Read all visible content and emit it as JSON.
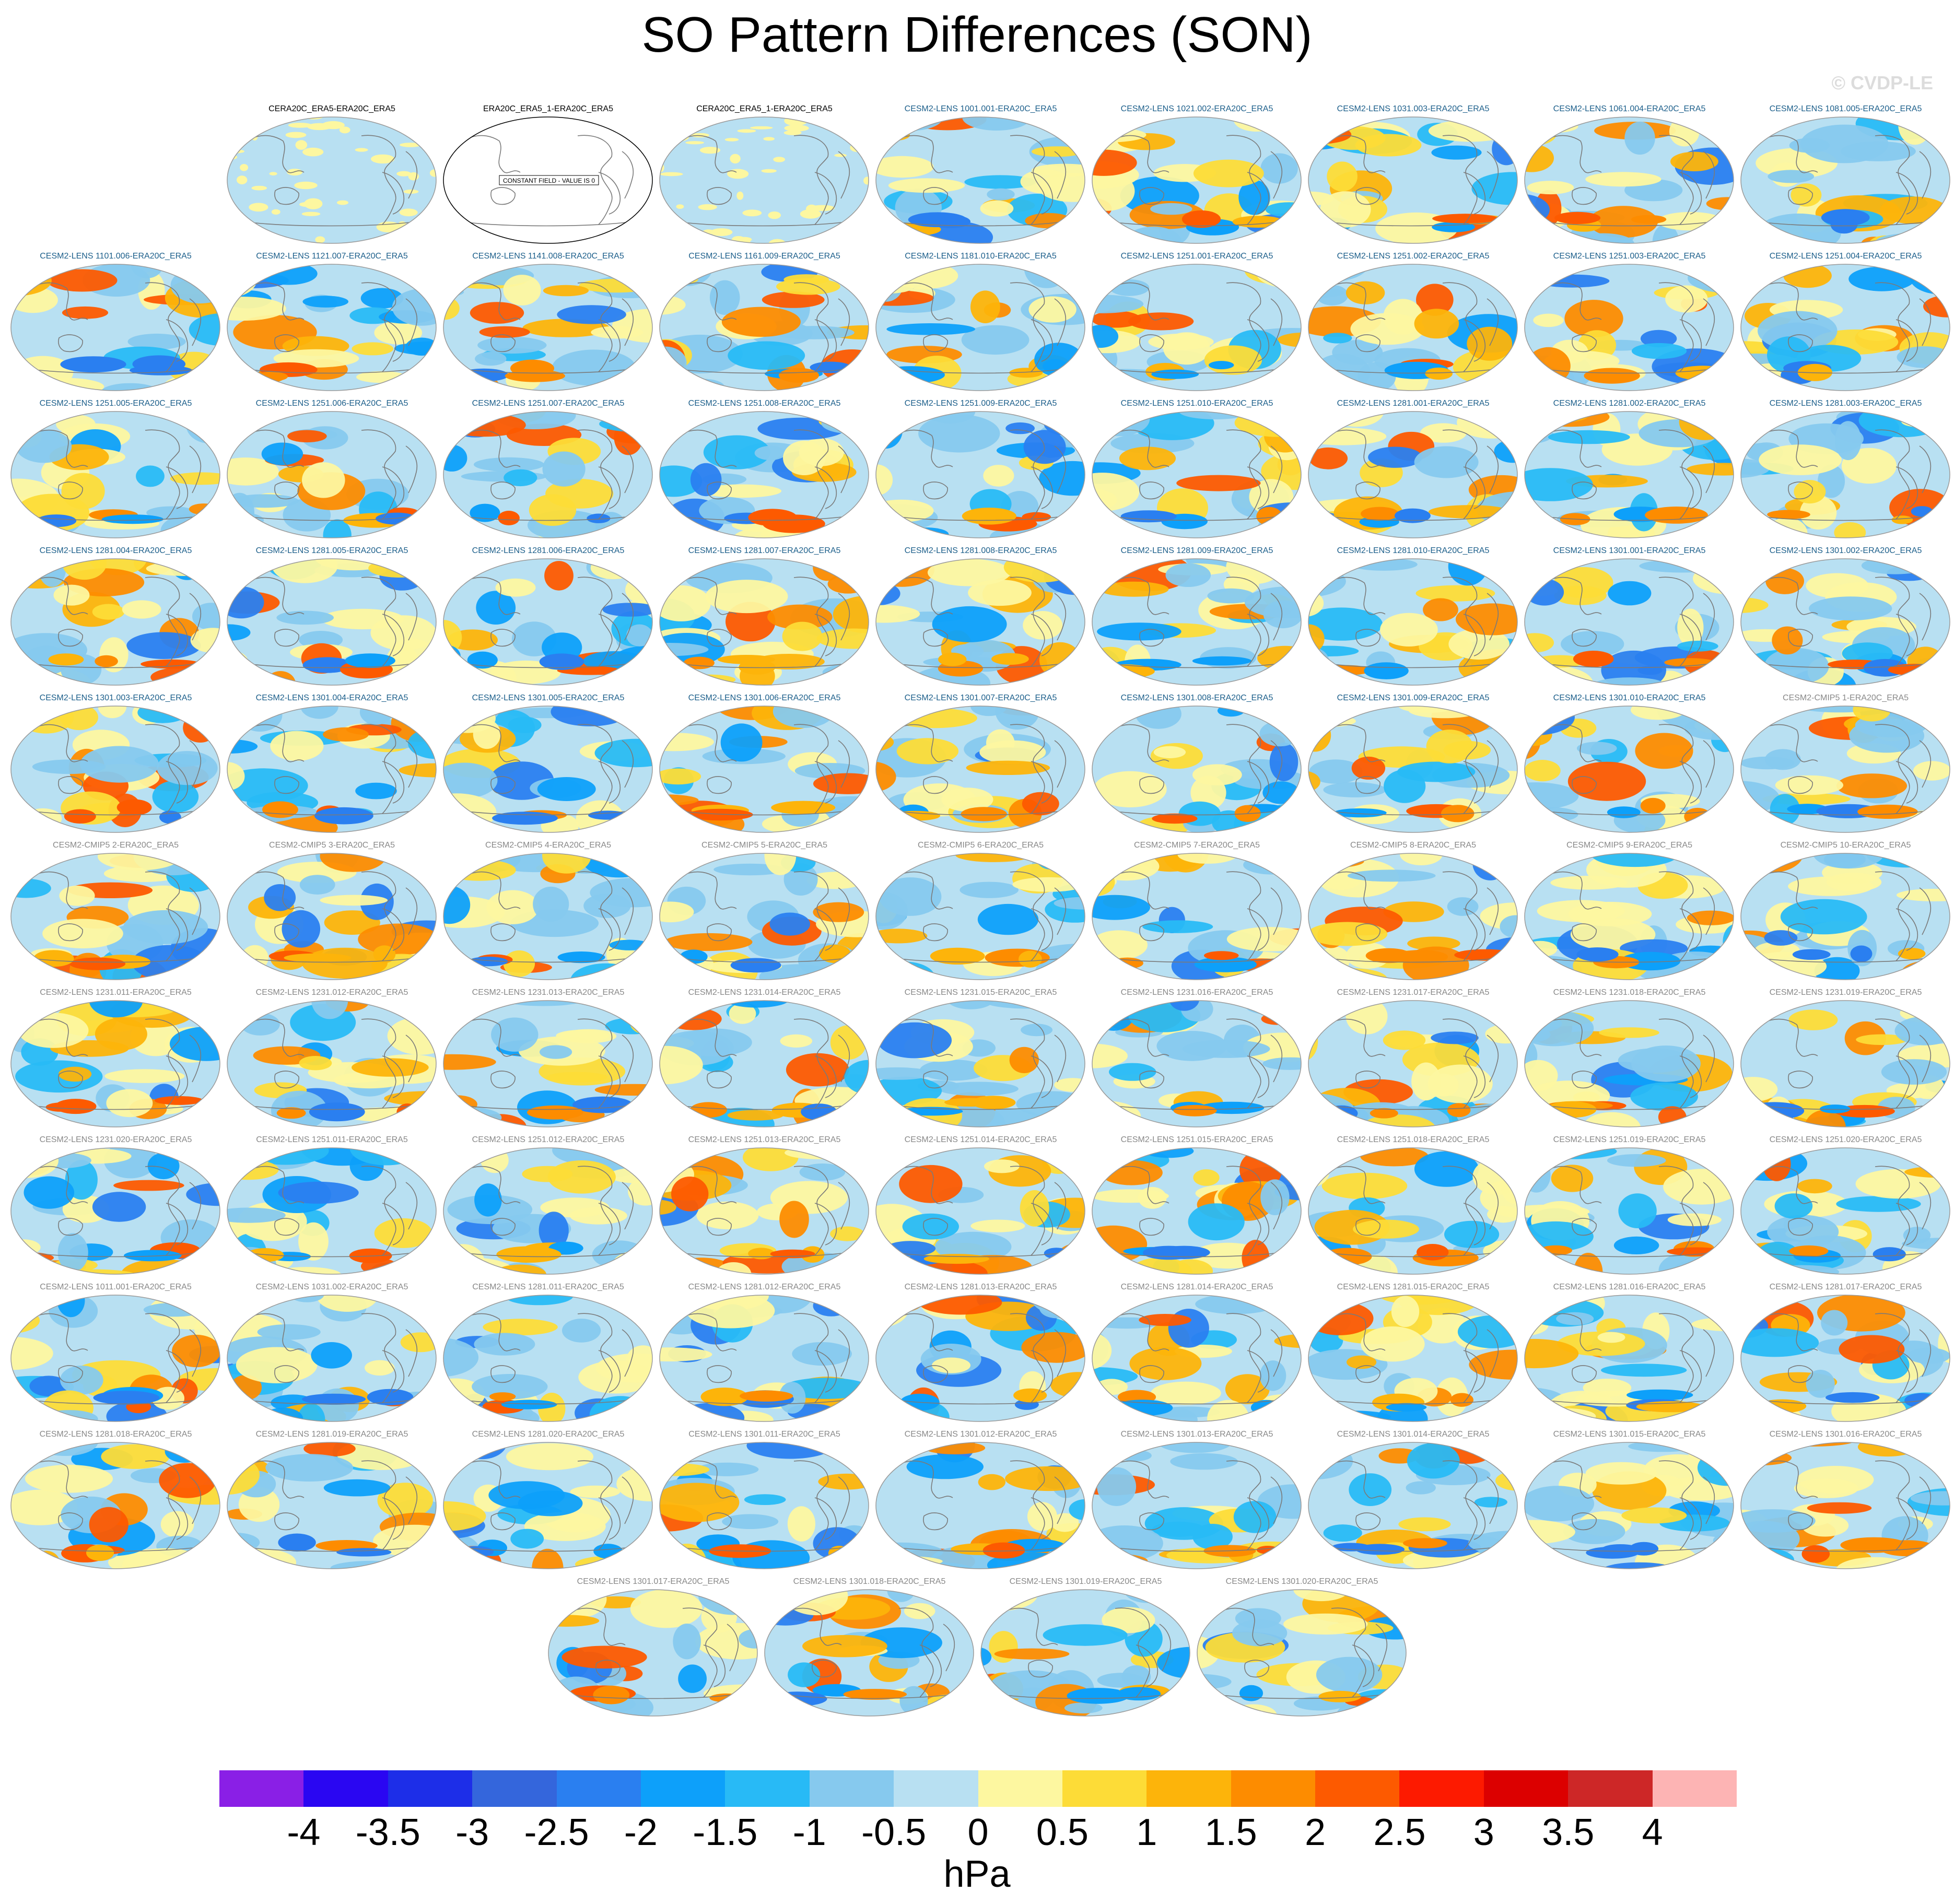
{
  "title": "SO Pattern Differences (SON)",
  "watermark": "© CVDP-LE",
  "units": "hPa",
  "colorbar": {
    "labels": [
      "-4",
      "-3.5",
      "-3",
      "-2.5",
      "-2",
      "-1.5",
      "-1",
      "-0.5",
      "0",
      "0.5",
      "1",
      "1.5",
      "2",
      "2.5",
      "3",
      "3.5",
      "4"
    ],
    "colors": [
      "#8a1fe6",
      "#2a06f2",
      "#1d2ee8",
      "#3466dc",
      "#2a7ff0",
      "#0da0fa",
      "#28baf6",
      "#86c9ee",
      "#b8e0f2",
      "#fdf7a0",
      "#fddc37",
      "#fdb40a",
      "#fd8c00",
      "#fd5a00",
      "#fd1a00",
      "#dc0000",
      "#cd2727",
      "#fdb4b4"
    ]
  },
  "constant_field_label": "CONSTANT FIELD - VALUE IS 0",
  "panels": [
    {
      "title": "CERA20C_ERA5-ERA20C_ERA5",
      "title_color": "#000000",
      "style": "light"
    },
    {
      "title": "ERA20C_ERA5_1-ERA20C_ERA5",
      "title_color": "#000000",
      "style": "constant"
    },
    {
      "title": "CERA20C_ERA5_1-ERA20C_ERA5",
      "title_color": "#000000",
      "style": "light"
    },
    {
      "title": "CESM2-LENS 1001.001-ERA20C_ERA5",
      "title_color": "#1b5e8a",
      "style": "field"
    },
    {
      "title": "CESM2-LENS 1021.002-ERA20C_ERA5",
      "title_color": "#1b5e8a",
      "style": "field"
    },
    {
      "title": "CESM2-LENS 1031.003-ERA20C_ERA5",
      "title_color": "#1b5e8a",
      "style": "field"
    },
    {
      "title": "CESM2-LENS 1061.004-ERA20C_ERA5",
      "title_color": "#1b5e8a",
      "style": "field"
    },
    {
      "title": "CESM2-LENS 1081.005-ERA20C_ERA5",
      "title_color": "#1b5e8a",
      "style": "field"
    },
    {
      "title": "CESM2-LENS 1101.006-ERA20C_ERA5",
      "title_color": "#1b5e8a",
      "style": "field"
    },
    {
      "title": "CESM2-LENS 1121.007-ERA20C_ERA5",
      "title_color": "#1b5e8a",
      "style": "field"
    },
    {
      "title": "CESM2-LENS 1141.008-ERA20C_ERA5",
      "title_color": "#1b5e8a",
      "style": "field"
    },
    {
      "title": "CESM2-LENS 1161.009-ERA20C_ERA5",
      "title_color": "#1b5e8a",
      "style": "field"
    },
    {
      "title": "CESM2-LENS 1181.010-ERA20C_ERA5",
      "title_color": "#1b5e8a",
      "style": "field"
    },
    {
      "title": "CESM2-LENS 1251.001-ERA20C_ERA5",
      "title_color": "#1b5e8a",
      "style": "field"
    },
    {
      "title": "CESM2-LENS 1251.002-ERA20C_ERA5",
      "title_color": "#1b5e8a",
      "style": "field"
    },
    {
      "title": "CESM2-LENS 1251.003-ERA20C_ERA5",
      "title_color": "#1b5e8a",
      "style": "field"
    },
    {
      "title": "CESM2-LENS 1251.004-ERA20C_ERA5",
      "title_color": "#1b5e8a",
      "style": "field"
    },
    {
      "title": "CESM2-LENS 1251.005-ERA20C_ERA5",
      "title_color": "#1b5e8a",
      "style": "field"
    },
    {
      "title": "CESM2-LENS 1251.006-ERA20C_ERA5",
      "title_color": "#1b5e8a",
      "style": "field"
    },
    {
      "title": "CESM2-LENS 1251.007-ERA20C_ERA5",
      "title_color": "#1b5e8a",
      "style": "field"
    },
    {
      "title": "CESM2-LENS 1251.008-ERA20C_ERA5",
      "title_color": "#1b5e8a",
      "style": "field"
    },
    {
      "title": "CESM2-LENS 1251.009-ERA20C_ERA5",
      "title_color": "#1b5e8a",
      "style": "field"
    },
    {
      "title": "CESM2-LENS 1251.010-ERA20C_ERA5",
      "title_color": "#1b5e8a",
      "style": "field"
    },
    {
      "title": "CESM2-LENS 1281.001-ERA20C_ERA5",
      "title_color": "#1b5e8a",
      "style": "field"
    },
    {
      "title": "CESM2-LENS 1281.002-ERA20C_ERA5",
      "title_color": "#1b5e8a",
      "style": "field"
    },
    {
      "title": "CESM2-LENS 1281.003-ERA20C_ERA5",
      "title_color": "#1b5e8a",
      "style": "field"
    },
    {
      "title": "CESM2-LENS 1281.004-ERA20C_ERA5",
      "title_color": "#1b5e8a",
      "style": "field"
    },
    {
      "title": "CESM2-LENS 1281.005-ERA20C_ERA5",
      "title_color": "#1b5e8a",
      "style": "field"
    },
    {
      "title": "CESM2-LENS 1281.006-ERA20C_ERA5",
      "title_color": "#1b5e8a",
      "style": "field"
    },
    {
      "title": "CESM2-LENS 1281.007-ERA20C_ERA5",
      "title_color": "#1b5e8a",
      "style": "field"
    },
    {
      "title": "CESM2-LENS 1281.008-ERA20C_ERA5",
      "title_color": "#1b5e8a",
      "style": "field"
    },
    {
      "title": "CESM2-LENS 1281.009-ERA20C_ERA5",
      "title_color": "#1b5e8a",
      "style": "field"
    },
    {
      "title": "CESM2-LENS 1281.010-ERA20C_ERA5",
      "title_color": "#1b5e8a",
      "style": "field"
    },
    {
      "title": "CESM2-LENS 1301.001-ERA20C_ERA5",
      "title_color": "#1b5e8a",
      "style": "field"
    },
    {
      "title": "CESM2-LENS 1301.002-ERA20C_ERA5",
      "title_color": "#1b5e8a",
      "style": "field"
    },
    {
      "title": "CESM2-LENS 1301.003-ERA20C_ERA5",
      "title_color": "#1b5e8a",
      "style": "field"
    },
    {
      "title": "CESM2-LENS 1301.004-ERA20C_ERA5",
      "title_color": "#1b5e8a",
      "style": "field"
    },
    {
      "title": "CESM2-LENS 1301.005-ERA20C_ERA5",
      "title_color": "#1b5e8a",
      "style": "field"
    },
    {
      "title": "CESM2-LENS 1301.006-ERA20C_ERA5",
      "title_color": "#1b5e8a",
      "style": "field"
    },
    {
      "title": "CESM2-LENS 1301.007-ERA20C_ERA5",
      "title_color": "#1b5e8a",
      "style": "field"
    },
    {
      "title": "CESM2-LENS 1301.008-ERA20C_ERA5",
      "title_color": "#1b5e8a",
      "style": "field"
    },
    {
      "title": "CESM2-LENS 1301.009-ERA20C_ERA5",
      "title_color": "#1b5e8a",
      "style": "field"
    },
    {
      "title": "CESM2-LENS 1301.010-ERA20C_ERA5",
      "title_color": "#1b5e8a",
      "style": "field"
    },
    {
      "title": "CESM2-CMIP5 1-ERA20C_ERA5",
      "title_color": "#888888",
      "style": "field"
    },
    {
      "title": "CESM2-CMIP5 2-ERA20C_ERA5",
      "title_color": "#888888",
      "style": "field"
    },
    {
      "title": "CESM2-CMIP5 3-ERA20C_ERA5",
      "title_color": "#888888",
      "style": "field"
    },
    {
      "title": "CESM2-CMIP5 4-ERA20C_ERA5",
      "title_color": "#888888",
      "style": "field"
    },
    {
      "title": "CESM2-CMIP5 5-ERA20C_ERA5",
      "title_color": "#888888",
      "style": "field"
    },
    {
      "title": "CESM2-CMIP5 6-ERA20C_ERA5",
      "title_color": "#888888",
      "style": "field"
    },
    {
      "title": "CESM2-CMIP5 7-ERA20C_ERA5",
      "title_color": "#888888",
      "style": "field"
    },
    {
      "title": "CESM2-CMIP5 8-ERA20C_ERA5",
      "title_color": "#888888",
      "style": "field"
    },
    {
      "title": "CESM2-CMIP5 9-ERA20C_ERA5",
      "title_color": "#888888",
      "style": "field"
    },
    {
      "title": "CESM2-CMIP5 10-ERA20C_ERA5",
      "title_color": "#888888",
      "style": "field"
    },
    {
      "title": "CESM2-LENS 1231.011-ERA20C_ERA5",
      "title_color": "#888888",
      "style": "field"
    },
    {
      "title": "CESM2-LENS 1231.012-ERA20C_ERA5",
      "title_color": "#888888",
      "style": "field"
    },
    {
      "title": "CESM2-LENS 1231.013-ERA20C_ERA5",
      "title_color": "#888888",
      "style": "field"
    },
    {
      "title": "CESM2-LENS 1231.014-ERA20C_ERA5",
      "title_color": "#888888",
      "style": "field"
    },
    {
      "title": "CESM2-LENS 1231.015-ERA20C_ERA5",
      "title_color": "#888888",
      "style": "field"
    },
    {
      "title": "CESM2-LENS 1231.016-ERA20C_ERA5",
      "title_color": "#888888",
      "style": "field"
    },
    {
      "title": "CESM2-LENS 1231.017-ERA20C_ERA5",
      "title_color": "#888888",
      "style": "field"
    },
    {
      "title": "CESM2-LENS 1231.018-ERA20C_ERA5",
      "title_color": "#888888",
      "style": "field"
    },
    {
      "title": "CESM2-LENS 1231.019-ERA20C_ERA5",
      "title_color": "#888888",
      "style": "field"
    },
    {
      "title": "CESM2-LENS 1231.020-ERA20C_ERA5",
      "title_color": "#888888",
      "style": "field"
    },
    {
      "title": "CESM2-LENS 1251.011-ERA20C_ERA5",
      "title_color": "#888888",
      "style": "field"
    },
    {
      "title": "CESM2-LENS 1251.012-ERA20C_ERA5",
      "title_color": "#888888",
      "style": "field"
    },
    {
      "title": "CESM2-LENS 1251.013-ERA20C_ERA5",
      "title_color": "#888888",
      "style": "field"
    },
    {
      "title": "CESM2-LENS 1251.014-ERA20C_ERA5",
      "title_color": "#888888",
      "style": "field"
    },
    {
      "title": "CESM2-LENS 1251.015-ERA20C_ERA5",
      "title_color": "#888888",
      "style": "field"
    },
    {
      "title": "CESM2-LENS 1251.018-ERA20C_ERA5",
      "title_color": "#888888",
      "style": "field"
    },
    {
      "title": "CESM2-LENS 1251.019-ERA20C_ERA5",
      "title_color": "#888888",
      "style": "field"
    },
    {
      "title": "CESM2-LENS 1251.020-ERA20C_ERA5",
      "title_color": "#888888",
      "style": "field"
    },
    {
      "title": "CESM2-LENS 1011.001-ERA20C_ERA5",
      "title_color": "#888888",
      "style": "field"
    },
    {
      "title": "CESM2-LENS 1031.002-ERA20C_ERA5",
      "title_color": "#888888",
      "style": "field"
    },
    {
      "title": "CESM2-LENS 1281.011-ERA20C_ERA5",
      "title_color": "#888888",
      "style": "field"
    },
    {
      "title": "CESM2-LENS 1281.012-ERA20C_ERA5",
      "title_color": "#888888",
      "style": "field"
    },
    {
      "title": "CESM2-LENS 1281.013-ERA20C_ERA5",
      "title_color": "#888888",
      "style": "field"
    },
    {
      "title": "CESM2-LENS 1281.014-ERA20C_ERA5",
      "title_color": "#888888",
      "style": "field"
    },
    {
      "title": "CESM2-LENS 1281.015-ERA20C_ERA5",
      "title_color": "#888888",
      "style": "field"
    },
    {
      "title": "CESM2-LENS 1281.016-ERA20C_ERA5",
      "title_color": "#888888",
      "style": "field"
    },
    {
      "title": "CESM2-LENS 1281.017-ERA20C_ERA5",
      "title_color": "#888888",
      "style": "field"
    },
    {
      "title": "CESM2-LENS 1281.018-ERA20C_ERA5",
      "title_color": "#888888",
      "style": "field"
    },
    {
      "title": "CESM2-LENS 1281.019-ERA20C_ERA5",
      "title_color": "#888888",
      "style": "field"
    },
    {
      "title": "CESM2-LENS 1281.020-ERA20C_ERA5",
      "title_color": "#888888",
      "style": "field"
    },
    {
      "title": "CESM2-LENS 1301.011-ERA20C_ERA5",
      "title_color": "#888888",
      "style": "field"
    },
    {
      "title": "CESM2-LENS 1301.012-ERA20C_ERA5",
      "title_color": "#888888",
      "style": "field"
    },
    {
      "title": "CESM2-LENS 1301.013-ERA20C_ERA5",
      "title_color": "#888888",
      "style": "field"
    },
    {
      "title": "CESM2-LENS 1301.014-ERA20C_ERA5",
      "title_color": "#888888",
      "style": "field"
    },
    {
      "title": "CESM2-LENS 1301.015-ERA20C_ERA5",
      "title_color": "#888888",
      "style": "field"
    },
    {
      "title": "CESM2-LENS 1301.016-ERA20C_ERA5",
      "title_color": "#888888",
      "style": "field"
    },
    {
      "title": "CESM2-LENS 1301.017-ERA20C_ERA5",
      "title_color": "#888888",
      "style": "field"
    },
    {
      "title": "CESM2-LENS 1301.018-ERA20C_ERA5",
      "title_color": "#888888",
      "style": "field"
    },
    {
      "title": "CESM2-LENS 1301.019-ERA20C_ERA5",
      "title_color": "#888888",
      "style": "field"
    },
    {
      "title": "CESM2-LENS 1301.020-ERA20C_ERA5",
      "title_color": "#888888",
      "style": "field"
    }
  ]
}
